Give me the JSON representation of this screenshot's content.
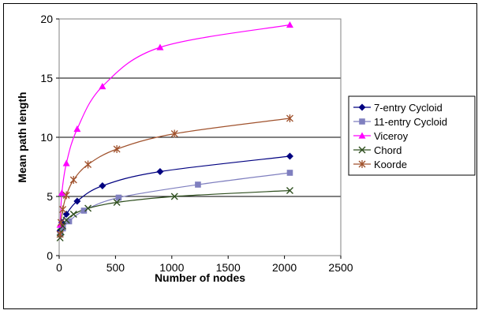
{
  "chart_data": {
    "type": "line",
    "xlabel": "Number of nodes",
    "ylabel": "Mean path length",
    "xlim": [
      0,
      2500
    ],
    "ylim": [
      0,
      20
    ],
    "x_ticks": [
      0,
      500,
      1000,
      1500,
      2000,
      2500
    ],
    "y_ticks": [
      0,
      5,
      10,
      15,
      20
    ],
    "grid": "horizontal",
    "legend_position": "right",
    "series": [
      {
        "name": "7-entry Cycloid",
        "color": "#000080",
        "marker": "diamond",
        "x": [
          8,
          24,
          64,
          160,
          384,
          896,
          2048
        ],
        "y": [
          2.1,
          2.8,
          3.5,
          4.6,
          5.9,
          7.1,
          8.4
        ]
      },
      {
        "name": "11-entry Cycloid",
        "color": "#7f7fbf",
        "marker": "square",
        "x": [
          11,
          33,
          88,
          220,
          528,
          1232,
          2048
        ],
        "y": [
          1.8,
          2.3,
          2.9,
          3.8,
          4.9,
          6.0,
          7.0
        ]
      },
      {
        "name": "Viceroy",
        "color": "#ff00ff",
        "marker": "triangle",
        "x": [
          8,
          24,
          64,
          160,
          384,
          896,
          2048
        ],
        "y": [
          2.6,
          5.3,
          7.8,
          10.7,
          14.3,
          17.6,
          19.5
        ]
      },
      {
        "name": "Chord",
        "color": "#2f4f1f",
        "marker": "x",
        "x": [
          8,
          16,
          32,
          64,
          128,
          256,
          512,
          1024,
          2048
        ],
        "y": [
          1.5,
          2.0,
          2.5,
          3.0,
          3.5,
          4.0,
          4.5,
          5.0,
          5.5
        ]
      },
      {
        "name": "Koorde",
        "color": "#a0522d",
        "marker": "star",
        "x": [
          8,
          16,
          32,
          64,
          128,
          256,
          512,
          1024,
          2048
        ],
        "y": [
          1.8,
          2.8,
          3.9,
          5.1,
          6.4,
          7.7,
          9.0,
          10.3,
          11.6
        ]
      }
    ]
  }
}
